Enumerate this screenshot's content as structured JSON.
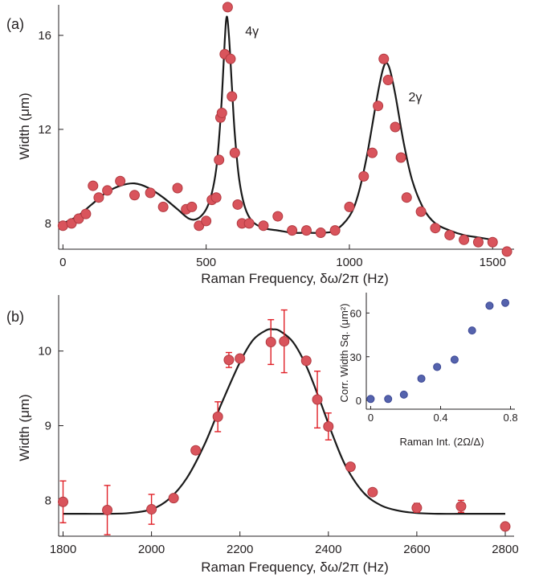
{
  "chart_data": [
    {
      "panel": "a",
      "type": "scatter",
      "panel_label": "(a)",
      "xlabel": "Raman Frequency, δω/2π (Hz)",
      "ylabel": "Width (μm)",
      "xlim": [
        -15,
        1575
      ],
      "ylim": [
        6.9,
        17.3
      ],
      "xticks": [
        0,
        500,
        1000,
        1500
      ],
      "yticks": [
        8,
        12,
        16
      ],
      "grid": false,
      "marker_color": "#d9545c",
      "marker_edge_color": "#b23a41",
      "fit_color": "#1a1a1a",
      "annotations": [
        {
          "text": "4γ",
          "x": 660,
          "y": 16.0
        },
        {
          "text": "2γ",
          "x": 1230,
          "y": 13.2
        }
      ],
      "series": [
        {
          "kind": "points",
          "x": [
            0,
            30,
            55,
            80,
            105,
            125,
            155,
            200,
            250,
            305,
            350,
            400,
            430,
            450,
            475,
            500,
            520,
            535,
            545,
            550,
            555,
            565,
            575,
            585,
            590,
            600,
            610,
            625,
            650,
            700,
            750,
            800,
            850,
            900,
            950,
            1000,
            1050,
            1080,
            1100,
            1120,
            1135,
            1160,
            1180,
            1200,
            1250,
            1300,
            1350,
            1400,
            1450,
            1500,
            1550
          ],
          "y": [
            7.9,
            8.0,
            8.2,
            8.4,
            9.6,
            9.1,
            9.4,
            9.8,
            9.2,
            9.3,
            8.7,
            9.5,
            8.6,
            8.7,
            7.9,
            8.1,
            9.0,
            9.1,
            10.7,
            12.5,
            12.7,
            15.2,
            17.2,
            15.0,
            13.4,
            11.0,
            8.8,
            8.0,
            8.0,
            7.9,
            8.3,
            7.7,
            7.7,
            7.6,
            7.7,
            8.7,
            10.0,
            11.0,
            13.0,
            15.0,
            14.1,
            12.1,
            10.8,
            9.1,
            8.5,
            7.8,
            7.5,
            7.3,
            7.2,
            7.2,
            6.8
          ]
        },
        {
          "kind": "fit",
          "x": [
            0,
            50,
            100,
            150,
            200,
            250,
            300,
            350,
            400,
            440,
            470,
            500,
            520,
            535,
            545,
            555,
            565,
            572,
            580,
            590,
            600,
            615,
            635,
            660,
            700,
            750,
            800,
            850,
            900,
            950,
            1000,
            1030,
            1060,
            1090,
            1110,
            1125,
            1140,
            1160,
            1190,
            1220,
            1260,
            1300,
            1350,
            1400,
            1450,
            1500
          ],
          "y": [
            8.0,
            8.3,
            8.8,
            9.3,
            9.6,
            9.7,
            9.5,
            9.1,
            8.6,
            8.2,
            8.2,
            8.6,
            9.3,
            10.3,
            11.6,
            13.4,
            15.8,
            16.8,
            15.9,
            13.8,
            11.8,
            9.9,
            8.7,
            8.1,
            7.8,
            7.7,
            7.6,
            7.6,
            7.6,
            7.7,
            8.3,
            9.2,
            10.8,
            12.9,
            14.2,
            14.8,
            14.6,
            13.5,
            11.4,
            9.8,
            8.6,
            8.0,
            7.7,
            7.5,
            7.4,
            7.3
          ]
        }
      ]
    },
    {
      "panel": "b",
      "type": "scatter",
      "panel_label": "(b)",
      "xlabel": "Raman Frequency, δω/2π (Hz)",
      "ylabel": "Width (μm)",
      "xlim": [
        1790,
        2820
      ],
      "ylim": [
        7.52,
        10.75
      ],
      "xticks": [
        1800,
        2000,
        2200,
        2400,
        2600,
        2800
      ],
      "yticks": [
        8,
        9,
        10
      ],
      "grid": false,
      "marker_color": "#d9545c",
      "marker_edge_color": "#b23a41",
      "errorbar_color": "#e02027",
      "fit_color": "#1a1a1a",
      "series": [
        {
          "kind": "points",
          "x": [
            1800,
            1900,
            2000,
            2050,
            2100,
            2150,
            2175,
            2200,
            2270,
            2300,
            2350,
            2375,
            2400,
            2450,
            2500,
            2600,
            2700,
            2800
          ],
          "y": [
            7.98,
            7.87,
            7.88,
            8.03,
            8.67,
            9.12,
            9.88,
            9.9,
            10.12,
            10.13,
            9.87,
            9.35,
            8.99,
            8.45,
            8.11,
            7.9,
            7.92,
            7.65
          ],
          "err": [
            0.28,
            0.33,
            0.2,
            0,
            0,
            0.2,
            0.1,
            0,
            0.3,
            0.42,
            0,
            0.38,
            0.18,
            0,
            0,
            0.06,
            0.08,
            0
          ]
        },
        {
          "kind": "fit",
          "x": [
            1800,
            1850,
            1900,
            1950,
            2000,
            2040,
            2080,
            2120,
            2160,
            2200,
            2230,
            2260,
            2275,
            2290,
            2320,
            2350,
            2380,
            2410,
            2440,
            2480,
            2520,
            2560,
            2600,
            2650,
            2700,
            2750,
            2800
          ],
          "y": [
            7.82,
            7.82,
            7.82,
            7.83,
            7.88,
            8.02,
            8.3,
            8.75,
            9.32,
            9.85,
            10.15,
            10.28,
            10.29,
            10.27,
            10.12,
            9.8,
            9.35,
            8.87,
            8.45,
            8.1,
            7.93,
            7.86,
            7.83,
            7.82,
            7.82,
            7.82,
            7.82
          ]
        }
      ]
    },
    {
      "panel": "b-inset",
      "type": "scatter",
      "xlabel": "Raman Int. (2Ω/Δ)",
      "ylabel": "Corr. Width Sq. (μm²)",
      "xlim": [
        -0.025,
        0.825
      ],
      "ylim": [
        -6,
        74
      ],
      "xticks": [
        0,
        0.4,
        0.8
      ],
      "xtick_labels": [
        "0",
        "0.4",
        "0.8"
      ],
      "yticks": [
        0,
        30,
        60
      ],
      "grid": false,
      "marker_color": "#5563ad",
      "marker_edge_color": "#3b4794",
      "series": [
        {
          "kind": "points",
          "x": [
            0,
            0.1,
            0.19,
            0.29,
            0.38,
            0.48,
            0.58,
            0.68,
            0.77
          ],
          "y": [
            1,
            1,
            4,
            15,
            23,
            28,
            48,
            65,
            67
          ]
        }
      ]
    }
  ]
}
